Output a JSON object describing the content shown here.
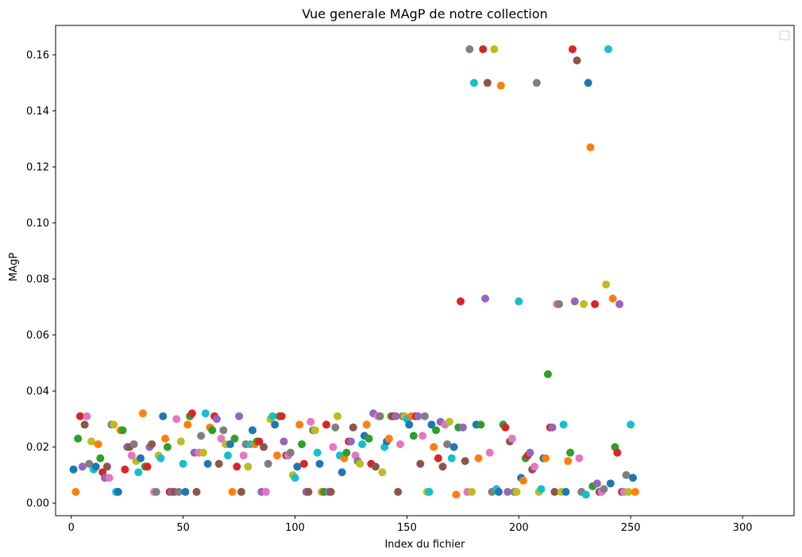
{
  "chart_data": {
    "type": "scatter",
    "title": "Vue generale MAgP de notre collection",
    "xlabel": "Index du fichier",
    "ylabel": "MAgP",
    "xlim": [
      -7,
      323
    ],
    "ylim": [
      -0.0045,
      0.1705
    ],
    "xticks": [
      0,
      50,
      100,
      150,
      200,
      250,
      300
    ],
    "yticks": [
      0.0,
      0.02,
      0.04,
      0.06,
      0.08,
      0.1,
      0.12,
      0.14,
      0.16
    ],
    "xtick_labels": [
      "0",
      "50",
      "100",
      "150",
      "200",
      "250",
      "300"
    ],
    "ytick_labels": [
      "0.00",
      "0.02",
      "0.04",
      "0.06",
      "0.08",
      "0.10",
      "0.12",
      "0.14",
      "0.16"
    ],
    "grid": false,
    "legend": "top-right (empty)",
    "palette": [
      "#1f77b4",
      "#ff7f0e",
      "#2ca02c",
      "#d62728",
      "#9467bd",
      "#8c564b",
      "#e377c2",
      "#7f7f7f",
      "#bcbd22",
      "#17becf"
    ],
    "values": [
      0.012,
      0.004,
      0.023,
      0.031,
      0.013,
      0.028,
      0.031,
      0.014,
      0.022,
      0.012,
      0.013,
      0.021,
      0.016,
      0.011,
      0.009,
      0.013,
      0.009,
      0.028,
      0.028,
      0.004,
      0.004,
      0.026,
      0.026,
      0.012,
      0.02,
      0.02,
      0.017,
      0.021,
      0.015,
      0.011,
      0.016,
      0.032,
      0.013,
      0.013,
      0.02,
      0.021,
      0.004,
      0.004,
      0.017,
      0.016,
      0.031,
      0.023,
      0.02,
      0.004,
      0.004,
      0.004,
      0.03,
      0.004,
      0.022,
      0.014,
      0.004,
      0.028,
      0.031,
      0.032,
      0.018,
      0.004,
      0.018,
      0.024,
      0.018,
      0.032,
      0.014,
      0.027,
      0.026,
      0.031,
      0.03,
      0.014,
      0.023,
      0.026,
      0.021,
      0.017,
      0.021,
      0.004,
      0.023,
      0.013,
      0.031,
      0.004,
      0.017,
      0.021,
      0.013,
      0.021,
      0.026,
      0.021,
      0.022,
      0.022,
      0.004,
      0.02,
      0.004,
      0.014,
      0.03,
      0.031,
      0.028,
      0.017,
      0.031,
      0.031,
      0.022,
      0.017,
      0.017,
      0.018,
      0.01,
      0.009,
      0.013,
      0.028,
      0.021,
      0.014,
      0.004,
      0.004,
      0.029,
      0.026,
      0.026,
      0.018,
      0.014,
      0.004,
      0.004,
      0.028,
      0.004,
      0.004,
      0.02,
      0.027,
      0.031,
      0.017,
      0.011,
      0.016,
      0.018,
      0.022,
      0.022,
      0.027,
      0.017,
      0.015,
      0.014,
      0.021,
      0.024,
      0.028,
      0.023,
      0.014,
      0.032,
      0.013,
      0.031,
      0.031,
      0.011,
      0.02,
      0.022,
      0.023,
      0.031,
      0.031,
      0.031,
      0.004,
      0.021,
      0.031,
      0.031,
      0.03,
      0.028,
      0.031,
      0.024,
      0.031,
      0.031,
      0.014,
      0.024,
      0.031,
      0.004,
      0.004,
      0.028,
      0.02,
      0.026,
      0.016,
      0.029,
      0.013,
      0.028,
      0.021,
      0.029,
      0.016,
      0.02,
      0.003,
      0.027,
      0.072,
      0.027,
      0.015,
      0.004,
      0.162,
      0.004,
      0.15,
      0.028,
      0.016,
      0.028,
      0.162,
      0.073,
      0.15,
      0.018,
      0.004,
      0.162,
      0.005,
      0.004,
      0.149,
      0.028,
      0.027,
      0.004,
      0.022,
      0.023,
      0.004,
      0.004,
      0.072,
      0.009,
      0.008,
      0.016,
      0.017,
      0.018,
      0.012,
      0.013,
      0.15,
      0.004,
      0.005,
      0.016,
      0.016,
      0.046,
      0.027,
      0.027,
      0.004,
      0.071,
      0.071,
      0.004,
      0.028,
      0.004,
      0.015,
      0.018,
      0.162,
      0.072,
      0.158,
      0.016,
      0.004,
      0.071,
      0.003,
      0.15,
      0.127,
      0.006,
      0.071,
      0.007,
      0.004,
      0.004,
      0.005,
      0.078,
      0.162,
      0.007,
      0.073,
      0.02,
      0.018,
      0.071,
      0.004,
      0.004,
      0.01,
      0.004,
      0.028,
      0.009,
      0.004
    ]
  }
}
